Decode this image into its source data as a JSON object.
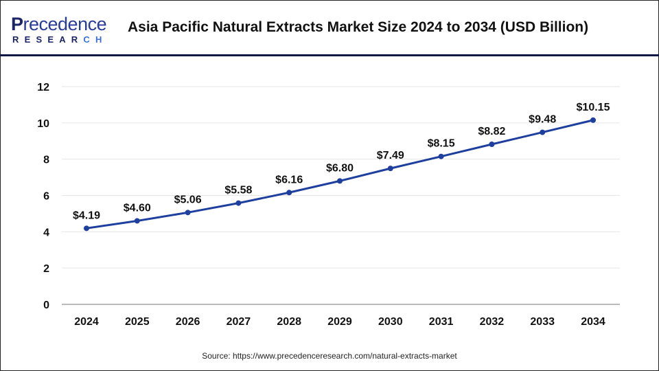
{
  "header": {
    "logo_text_main": "Precedence",
    "logo_text_sub": "RESEARCH",
    "title": "Asia Pacific Natural Extracts Market Size 2024 to 2034 (USD Billion)"
  },
  "source": "Source: https://www.precedenceresearch.com/natural-extracts-market",
  "colors": {
    "line": "#1f3f9f",
    "grid": "#e6e6e6",
    "axis": "#bbbbbb",
    "header_rule": "#0f1640"
  },
  "chart_data": {
    "type": "line",
    "title": "Asia Pacific Natural Extracts Market Size 2024 to 2034 (USD Billion)",
    "xlabel": "",
    "ylabel": "",
    "categories": [
      "2024",
      "2025",
      "2026",
      "2027",
      "2028",
      "2029",
      "2030",
      "2031",
      "2032",
      "2033",
      "2034"
    ],
    "values": [
      4.19,
      4.6,
      5.06,
      5.58,
      6.16,
      6.8,
      7.49,
      8.15,
      8.82,
      9.48,
      10.15
    ],
    "data_labels": [
      "$4.19",
      "$4.60",
      "$5.06",
      "$5.58",
      "$6.16",
      "$6.80",
      "$7.49",
      "$8.15",
      "$8.82",
      "$9.48",
      "$10.15"
    ],
    "ylim": [
      0,
      12
    ],
    "yticks": [
      0,
      2,
      4,
      6,
      8,
      10,
      12
    ],
    "grid": true,
    "legend": "none"
  }
}
